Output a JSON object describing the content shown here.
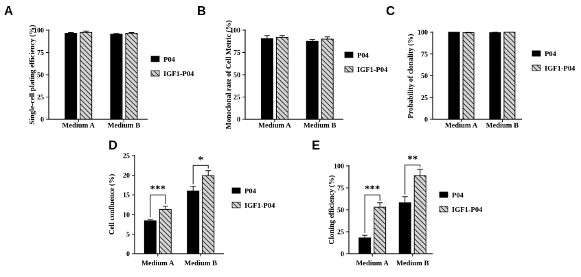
{
  "chart_data": [
    {
      "panel": "A",
      "type": "bar",
      "categories": [
        "Medium A",
        "Medium B"
      ],
      "series": [
        {
          "name": "P04",
          "values": [
            96.5,
            95.5
          ],
          "errors": [
            0.8,
            0.8
          ]
        },
        {
          "name": "IGF1-P04",
          "values": [
            97.5,
            96.5
          ],
          "errors": [
            1.5,
            0.8
          ]
        }
      ],
      "ylabel": "Single-cell plating efficiency (%)",
      "ylim": [
        0,
        100
      ],
      "yticks": [
        "0",
        "25",
        "50",
        "75",
        "100"
      ],
      "legend": [
        "P04",
        "IGF1-P04"
      ],
      "significance": []
    },
    {
      "panel": "B",
      "type": "bar",
      "categories": [
        "Medium A",
        "Medium B"
      ],
      "series": [
        {
          "name": "P04",
          "values": [
            90.5,
            87.5
          ],
          "errors": [
            3.5,
            2.0
          ]
        },
        {
          "name": "IGF1-P04",
          "values": [
            92.0,
            90.0
          ],
          "errors": [
            2.0,
            2.5
          ]
        }
      ],
      "ylabel": "Monoclonal rate of Cell Metric (%)",
      "ylim": [
        0,
        100
      ],
      "yticks": [
        "0",
        "25",
        "50",
        "75",
        "100"
      ],
      "legend": [
        "P04",
        "IGF1-P04"
      ],
      "significance": []
    },
    {
      "panel": "C",
      "type": "bar",
      "categories": [
        "Medium A",
        "Medium B"
      ],
      "series": [
        {
          "name": "P04",
          "values": [
            100,
            99.5
          ],
          "errors": [
            0,
            0.5
          ]
        },
        {
          "name": "IGF1-P04",
          "values": [
            99.5,
            100
          ],
          "errors": [
            0.3,
            0
          ]
        }
      ],
      "ylabel": "Probability of clonality (%)",
      "ylim": [
        0,
        100
      ],
      "yticks": [
        "0",
        "25",
        "50",
        "75",
        "100"
      ],
      "legend": [
        "P04",
        "IGF1-P04"
      ],
      "significance": []
    },
    {
      "panel": "D",
      "type": "bar",
      "categories": [
        "Medium A",
        "Medium B"
      ],
      "series": [
        {
          "name": "P04",
          "values": [
            8.4,
            16.0
          ],
          "errors": [
            0.3,
            1.2
          ]
        },
        {
          "name": "IGF1-P04",
          "values": [
            11.3,
            19.9
          ],
          "errors": [
            0.8,
            1.3
          ]
        }
      ],
      "ylabel": "Cell confluence (%)",
      "ylim": [
        0,
        25
      ],
      "yticks": [
        "0",
        "5",
        "10",
        "15",
        "20",
        "25"
      ],
      "legend": [
        "P04",
        "IGF1-P04"
      ],
      "significance": [
        {
          "category": 0,
          "label": "***",
          "bracket_at": 15.0
        },
        {
          "category": 1,
          "label": "*",
          "bracket_at": 22.5
        }
      ]
    },
    {
      "panel": "E",
      "type": "bar",
      "categories": [
        "Medium A",
        "Medium B"
      ],
      "series": [
        {
          "name": "P04",
          "values": [
            18,
            58
          ],
          "errors": [
            3,
            7
          ]
        },
        {
          "name": "IGF1-P04",
          "values": [
            53,
            89
          ],
          "errors": [
            5,
            7
          ]
        }
      ],
      "ylabel": "Cloning efficiency (%)",
      "ylim": [
        0,
        100
      ],
      "yticks": [
        "0",
        "25",
        "50",
        "75",
        "100"
      ],
      "legend": [
        "P04",
        "IGF1-P04"
      ],
      "significance": [
        {
          "category": 0,
          "label": "***",
          "bracket_at": 67
        },
        {
          "category": 1,
          "label": "**",
          "bracket_at": 101
        }
      ]
    }
  ]
}
